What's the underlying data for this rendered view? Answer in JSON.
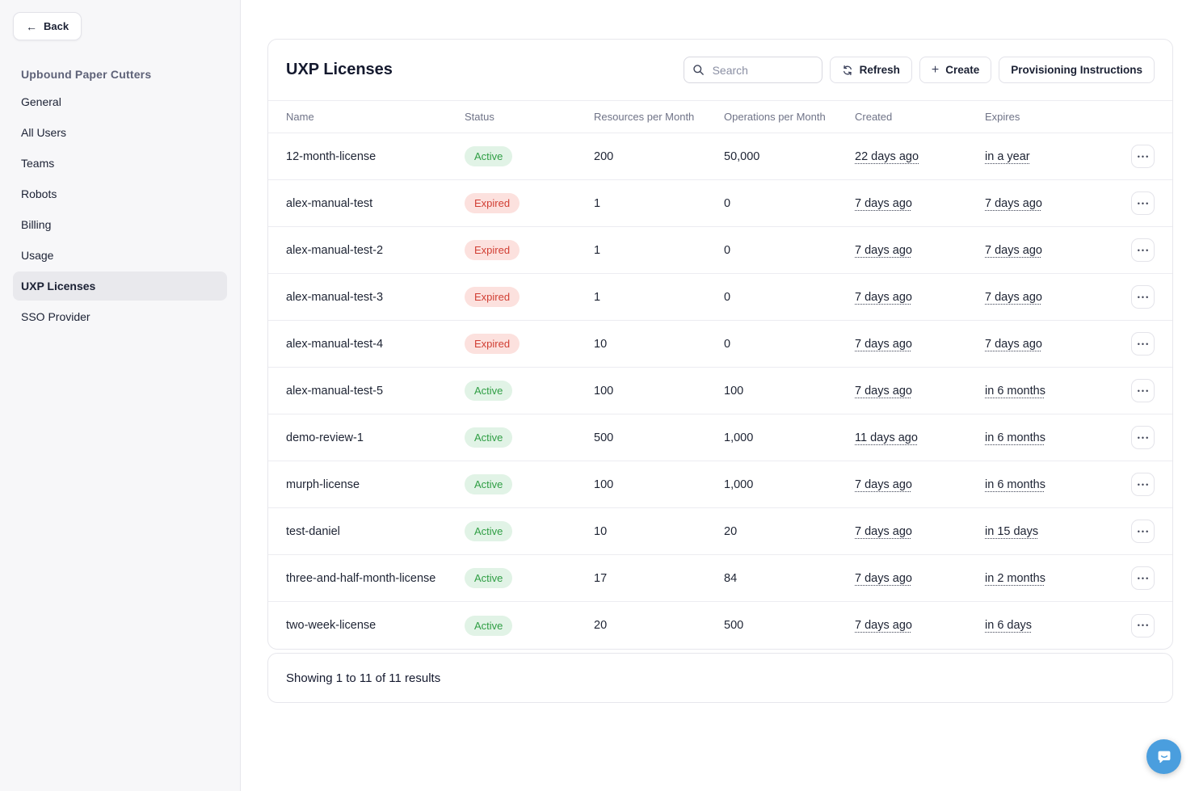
{
  "sidebar": {
    "back_label": "Back",
    "org_title": "Upbound Paper Cutters",
    "items": [
      {
        "label": "General",
        "selected": false
      },
      {
        "label": "All Users",
        "selected": false
      },
      {
        "label": "Teams",
        "selected": false
      },
      {
        "label": "Robots",
        "selected": false
      },
      {
        "label": "Billing",
        "selected": false
      },
      {
        "label": "Usage",
        "selected": false
      },
      {
        "label": "UXP Licenses",
        "selected": true
      },
      {
        "label": "SSO Provider",
        "selected": false
      }
    ]
  },
  "main": {
    "title": "UXP Licenses",
    "search_placeholder": "Search",
    "refresh_label": "Refresh",
    "create_label": "Create",
    "provisioning_label": "Provisioning Instructions",
    "table": {
      "columns": [
        "Name",
        "Status",
        "Resources per Month",
        "Operations per Month",
        "Created",
        "Expires"
      ],
      "rows": [
        {
          "name": "12-month-license",
          "status": "Active",
          "resources": "200",
          "operations": "50,000",
          "created": "22 days ago",
          "expires": "in a year"
        },
        {
          "name": "alex-manual-test",
          "status": "Expired",
          "resources": "1",
          "operations": "0",
          "created": "7 days ago",
          "expires": "7 days ago"
        },
        {
          "name": "alex-manual-test-2",
          "status": "Expired",
          "resources": "1",
          "operations": "0",
          "created": "7 days ago",
          "expires": "7 days ago"
        },
        {
          "name": "alex-manual-test-3",
          "status": "Expired",
          "resources": "1",
          "operations": "0",
          "created": "7 days ago",
          "expires": "7 days ago"
        },
        {
          "name": "alex-manual-test-4",
          "status": "Expired",
          "resources": "10",
          "operations": "0",
          "created": "7 days ago",
          "expires": "7 days ago"
        },
        {
          "name": "alex-manual-test-5",
          "status": "Active",
          "resources": "100",
          "operations": "100",
          "created": "7 days ago",
          "expires": "in 6 months"
        },
        {
          "name": "demo-review-1",
          "status": "Active",
          "resources": "500",
          "operations": "1,000",
          "created": "11 days ago",
          "expires": "in 6 months"
        },
        {
          "name": "murph-license",
          "status": "Active",
          "resources": "100",
          "operations": "1,000",
          "created": "7 days ago",
          "expires": "in 6 months"
        },
        {
          "name": "test-daniel",
          "status": "Active",
          "resources": "10",
          "operations": "20",
          "created": "7 days ago",
          "expires": "in 15 days"
        },
        {
          "name": "three-and-half-month-license",
          "status": "Active",
          "resources": "17",
          "operations": "84",
          "created": "7 days ago",
          "expires": "in 2 months"
        },
        {
          "name": "two-week-license",
          "status": "Active",
          "resources": "20",
          "operations": "500",
          "created": "7 days ago",
          "expires": "in 6 days"
        }
      ],
      "footer": "Showing 1 to 11 of 11 results"
    }
  },
  "icons": {
    "back_arrow": "←",
    "plus": "+",
    "dots": "•••"
  },
  "colors": {
    "active_bg": "#e1f3e6",
    "active_text": "#2f9e44",
    "expired_bg": "#fce1de",
    "expired_text": "#d13f34",
    "chat_bubble": "#4a9ede",
    "selected_nav_bg": "#e9e9ed",
    "sidebar_bg": "#f7f7f9",
    "border": "#e7e7ec",
    "text_primary": "#1b2134",
    "text_muted": "#6f7387",
    "org_title": "#5e6278"
  }
}
